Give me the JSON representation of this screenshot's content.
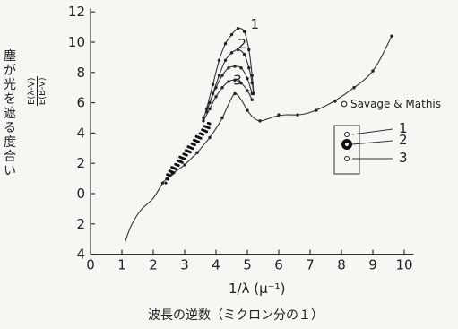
{
  "chart_data": {
    "type": "line",
    "ylabel_vertical": "塵が光を遮る度合い",
    "ylabel_ratio_numerator": "E(λ-V)",
    "ylabel_ratio_denominator": "E(B-V)",
    "xlabel": "1/λ (μ⁻¹)",
    "caption": "波長の逆数（ミクロン分の１）",
    "xlim": [
      0,
      11
    ],
    "ylim": [
      -4,
      12
    ],
    "x_ticks": [
      "0",
      "1",
      "2",
      "3",
      "4",
      "5",
      "6",
      "7",
      "8",
      "9",
      "10"
    ],
    "y_ticks": [
      {
        "v": 12,
        "label": "12"
      },
      {
        "v": 10,
        "label": "10"
      },
      {
        "v": 8,
        "label": "8"
      },
      {
        "v": 6,
        "label": "6"
      },
      {
        "v": 4,
        "label": "4"
      },
      {
        "v": 2,
        "label": "2"
      },
      {
        "v": 0,
        "label": "0"
      },
      {
        "v": -2,
        "label": "2"
      },
      {
        "v": -4,
        "label": "4"
      }
    ],
    "series": [
      {
        "key": "main",
        "points": [
          [
            1.1,
            -3.2
          ],
          [
            1.3,
            -2.1
          ],
          [
            1.6,
            -1.1
          ],
          [
            2.0,
            -0.3
          ],
          [
            2.3,
            0.7
          ],
          [
            2.4,
            0.9
          ],
          [
            2.6,
            1.3
          ],
          [
            2.8,
            1.6
          ],
          [
            3.0,
            1.9
          ],
          [
            3.2,
            2.3
          ],
          [
            3.4,
            2.7
          ],
          [
            3.6,
            3.2
          ],
          [
            3.8,
            3.7
          ],
          [
            4.0,
            4.3
          ],
          [
            4.2,
            5.0
          ],
          [
            4.4,
            5.9
          ],
          [
            4.6,
            6.6
          ],
          [
            4.8,
            6.2
          ],
          [
            5.0,
            5.5
          ],
          [
            5.2,
            5.0
          ],
          [
            5.4,
            4.8
          ],
          [
            5.6,
            4.9
          ],
          [
            5.9,
            5.1
          ],
          [
            6.2,
            5.2
          ],
          [
            6.8,
            5.25
          ],
          [
            7.5,
            5.8
          ],
          [
            8.2,
            6.7
          ],
          [
            9.0,
            8.1
          ],
          [
            9.6,
            10.4
          ]
        ],
        "markers": [
          [
            2.3,
            0.7
          ],
          [
            2.6,
            1.3
          ],
          [
            3.0,
            1.9
          ],
          [
            3.4,
            2.7
          ],
          [
            3.8,
            3.7
          ],
          [
            4.2,
            5.0
          ],
          [
            4.6,
            6.6
          ],
          [
            5.0,
            5.5
          ],
          [
            5.4,
            4.8
          ],
          [
            6.0,
            5.2
          ],
          [
            6.6,
            5.2
          ],
          [
            7.2,
            5.5
          ],
          [
            7.8,
            6.1
          ],
          [
            8.4,
            7.0
          ],
          [
            9.0,
            8.1
          ],
          [
            9.6,
            10.4
          ]
        ]
      },
      {
        "key": "curve1",
        "label": "1",
        "label_at": [
          5.1,
          10.9
        ],
        "points": [
          [
            3.7,
            5.6
          ],
          [
            3.9,
            7.2
          ],
          [
            4.1,
            8.8
          ],
          [
            4.3,
            9.9
          ],
          [
            4.5,
            10.5
          ],
          [
            4.7,
            10.9
          ],
          [
            4.9,
            10.7
          ],
          [
            5.05,
            9.5
          ],
          [
            5.15,
            7.8
          ],
          [
            5.2,
            6.6
          ]
        ]
      },
      {
        "key": "curve2",
        "label": "2",
        "label_at": [
          4.7,
          9.6
        ],
        "points": [
          [
            3.7,
            5.4
          ],
          [
            3.9,
            6.6
          ],
          [
            4.1,
            7.8
          ],
          [
            4.3,
            8.8
          ],
          [
            4.5,
            9.3
          ],
          [
            4.7,
            9.5
          ],
          [
            4.9,
            9.2
          ],
          [
            5.05,
            8.3
          ],
          [
            5.15,
            7.3
          ],
          [
            5.2,
            6.6
          ]
        ]
      },
      {
        "key": "curve3a",
        "points": [
          [
            3.6,
            5.0
          ],
          [
            3.8,
            6.0
          ],
          [
            4.0,
            7.0
          ],
          [
            4.2,
            7.8
          ],
          [
            4.4,
            8.3
          ],
          [
            4.6,
            8.4
          ],
          [
            4.8,
            8.3
          ],
          [
            5.0,
            7.6
          ],
          [
            5.15,
            6.6
          ]
        ]
      },
      {
        "key": "curve3b",
        "label": "3",
        "label_at": [
          4.55,
          7.2
        ],
        "points": [
          [
            3.6,
            4.8
          ],
          [
            3.8,
            5.6
          ],
          [
            4.0,
            6.4
          ],
          [
            4.2,
            7.0
          ],
          [
            4.4,
            7.4
          ],
          [
            4.6,
            7.5
          ],
          [
            4.8,
            7.3
          ],
          [
            5.0,
            6.8
          ],
          [
            5.15,
            6.2
          ]
        ]
      }
    ],
    "legend": {
      "title": "Savage & Mathis",
      "items": [
        "1",
        "2",
        "3"
      ]
    }
  }
}
